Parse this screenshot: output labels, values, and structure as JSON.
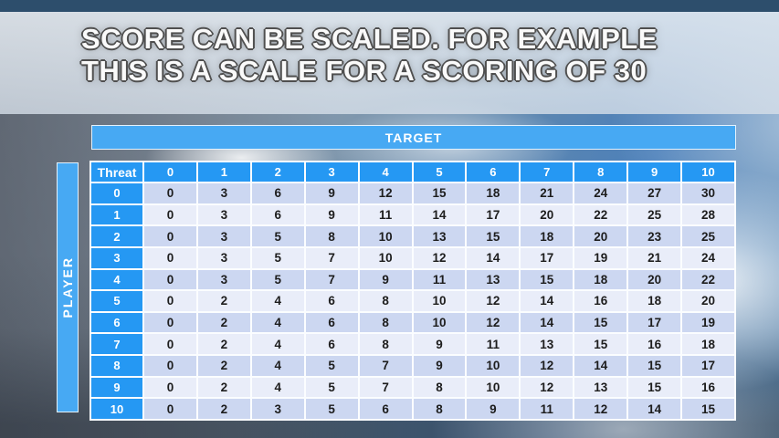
{
  "slide": {
    "title_line1": "SCORE CAN BE SCALED. FOR EXAMPLE",
    "title_line2": "THIS IS A SCALE FOR A SCORING OF 30"
  },
  "table": {
    "target_label": "TARGET",
    "player_label": "PLAYER",
    "corner_label": "Threat",
    "column_headers": [
      "0",
      "1",
      "2",
      "3",
      "4",
      "5",
      "6",
      "7",
      "8",
      "9",
      "10"
    ],
    "row_headers": [
      "0",
      "1",
      "2",
      "3",
      "4",
      "5",
      "6",
      "7",
      "8",
      "9",
      "10"
    ],
    "rows": [
      [
        0,
        3,
        6,
        9,
        12,
        15,
        18,
        21,
        24,
        27,
        30
      ],
      [
        0,
        3,
        6,
        9,
        11,
        14,
        17,
        20,
        22,
        25,
        28
      ],
      [
        0,
        3,
        5,
        8,
        10,
        13,
        15,
        18,
        20,
        23,
        25
      ],
      [
        0,
        3,
        5,
        7,
        10,
        12,
        14,
        17,
        19,
        21,
        24
      ],
      [
        0,
        3,
        5,
        7,
        9,
        11,
        13,
        15,
        18,
        20,
        22
      ],
      [
        0,
        2,
        4,
        6,
        8,
        10,
        12,
        14,
        16,
        18,
        20
      ],
      [
        0,
        2,
        4,
        6,
        8,
        10,
        12,
        14,
        15,
        17,
        19
      ],
      [
        0,
        2,
        4,
        6,
        8,
        9,
        11,
        13,
        15,
        16,
        18
      ],
      [
        0,
        2,
        4,
        5,
        7,
        9,
        10,
        12,
        14,
        15,
        17
      ],
      [
        0,
        2,
        4,
        5,
        7,
        8,
        10,
        12,
        13,
        15,
        16
      ],
      [
        0,
        2,
        3,
        5,
        6,
        8,
        9,
        11,
        12,
        14,
        15
      ]
    ]
  },
  "colors": {
    "header-blue": "#2598f3",
    "bar-blue": "#47a9f3",
    "row-even": "#ccd7f1",
    "row-odd": "#e9edf9",
    "cell-text": "#1d1d1d",
    "grid-white": "#fbfdff",
    "top-band": "#2d4e6c",
    "title-text": "#fafafa",
    "title-outline": "#4f4f4f"
  }
}
